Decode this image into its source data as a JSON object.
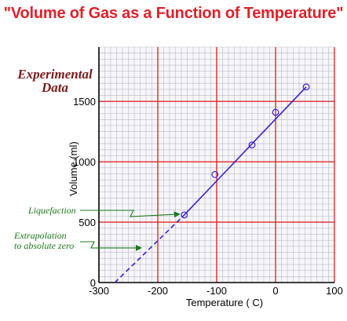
{
  "chart_data": {
    "type": "scatter",
    "title": "\"Volume of Gas as a Function of Temperature\"",
    "subtitle_lines": [
      "Experimental",
      "Data"
    ],
    "xlabel": "Temperature  (  C)",
    "ylabel": "Volume (ml)",
    "xlim": [
      -300,
      100
    ],
    "ylim": [
      0,
      1950
    ],
    "x_ticks": [
      -300,
      -200,
      -100,
      0,
      100
    ],
    "y_ticks": [
      0,
      500,
      1000,
      1500
    ],
    "x_minor_step": 10,
    "y_minor_step": 50,
    "grid": true,
    "points": [
      {
        "x": -155,
        "y": 560
      },
      {
        "x": -103,
        "y": 895
      },
      {
        "x": -40,
        "y": 1140
      },
      {
        "x": 0,
        "y": 1410
      },
      {
        "x": 52,
        "y": 1620
      }
    ],
    "fit_line": {
      "x": [
        -155,
        52
      ],
      "y": [
        560,
        1620
      ]
    },
    "extrapolation": {
      "x": [
        -273,
        -155
      ],
      "y": [
        0,
        560
      ]
    },
    "annotations": [
      {
        "lines": [
          "Liquefaction"
        ],
        "target": {
          "x": -155,
          "y": 560
        }
      },
      {
        "lines": [
          "Extrapolation",
          "to absolute zero"
        ],
        "target": {
          "x": -220,
          "y": 280
        }
      }
    ],
    "colors": {
      "title": "#e0202a",
      "subtitle": "#7a1a1a",
      "major_grid": "#e02a2a",
      "minor_grid": "#b9b9c9",
      "data": "#3a1fd0",
      "annotation": "#1b7a1b"
    }
  }
}
